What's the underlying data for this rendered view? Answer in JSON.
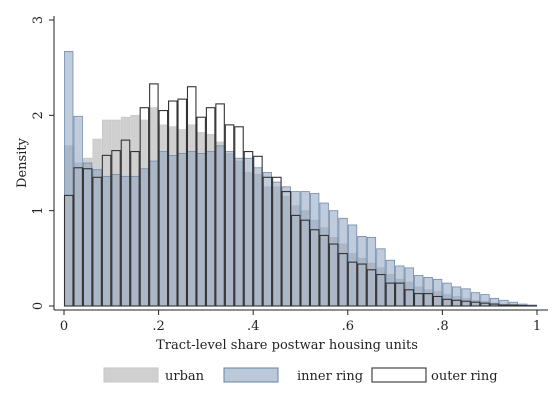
{
  "chart_data": {
    "type": "bar",
    "title": "",
    "xlabel": "Tract-level share postwar housing units",
    "ylabel": "Density",
    "xlim": [
      0,
      1
    ],
    "ylim": [
      0,
      3
    ],
    "x_ticks": [
      0,
      0.2,
      0.4,
      0.6,
      0.8,
      1
    ],
    "x_tick_labels": [
      "0",
      ".2",
      ".4",
      ".6",
      ".8",
      "1"
    ],
    "y_ticks": [
      0,
      1,
      2,
      3
    ],
    "y_tick_labels": [
      "0",
      "1",
      "2",
      "3"
    ],
    "grid": false,
    "legend_position": "bottom",
    "bin_width": 0.02,
    "bin_starts": [
      0,
      0.02,
      0.04,
      0.06,
      0.08,
      0.1,
      0.12,
      0.14,
      0.16,
      0.18,
      0.2,
      0.22,
      0.24,
      0.26,
      0.28,
      0.3,
      0.32,
      0.34,
      0.36,
      0.38,
      0.4,
      0.42,
      0.44,
      0.46,
      0.48,
      0.5,
      0.52,
      0.54,
      0.56,
      0.58,
      0.6,
      0.62,
      0.64,
      0.66,
      0.68,
      0.7,
      0.72,
      0.74,
      0.76,
      0.78,
      0.8,
      0.82,
      0.84,
      0.86,
      0.88,
      0.9,
      0.92,
      0.94,
      0.96,
      0.98
    ],
    "series": [
      {
        "name": "urban",
        "fill": "#c8c8c8",
        "stroke": "#c8c8c8",
        "fill_opacity": 0.85,
        "values": [
          1.68,
          1.5,
          1.55,
          1.75,
          1.95,
          1.95,
          1.98,
          2.0,
          1.95,
          2.08,
          1.9,
          1.88,
          1.85,
          1.9,
          1.82,
          1.8,
          1.72,
          1.6,
          1.52,
          1.4,
          1.38,
          1.25,
          1.25,
          1.15,
          1.05,
          1.0,
          0.9,
          0.82,
          0.72,
          0.65,
          0.55,
          0.5,
          0.45,
          0.4,
          0.33,
          0.28,
          0.25,
          0.2,
          0.17,
          0.15,
          0.12,
          0.1,
          0.08,
          0.06,
          0.05,
          0.03,
          0.02,
          0.01,
          0.01,
          0.005
        ]
      },
      {
        "name": "inner ring",
        "fill": "#8da3bd",
        "stroke": "#6f8bab",
        "fill_opacity": 0.55,
        "values": [
          2.67,
          1.99,
          1.5,
          1.43,
          1.36,
          1.38,
          1.36,
          1.36,
          1.44,
          1.52,
          1.62,
          1.58,
          1.6,
          1.62,
          1.6,
          1.62,
          1.68,
          1.62,
          1.55,
          1.55,
          1.45,
          1.4,
          1.3,
          1.25,
          1.2,
          1.2,
          1.18,
          1.08,
          1.0,
          0.92,
          0.85,
          0.73,
          0.72,
          0.6,
          0.48,
          0.42,
          0.4,
          0.32,
          0.3,
          0.28,
          0.24,
          0.2,
          0.18,
          0.14,
          0.12,
          0.08,
          0.06,
          0.04,
          0.02,
          0.01
        ]
      },
      {
        "name": "outer ring",
        "fill": "none",
        "stroke": "#333333",
        "fill_opacity": 0,
        "values": [
          1.16,
          1.45,
          1.44,
          1.35,
          1.58,
          1.63,
          1.74,
          1.62,
          2.08,
          2.33,
          2.05,
          2.15,
          2.17,
          2.3,
          1.98,
          2.08,
          2.12,
          1.9,
          1.88,
          1.62,
          1.57,
          1.35,
          1.35,
          1.2,
          0.95,
          0.9,
          0.8,
          0.74,
          0.65,
          0.55,
          0.46,
          0.44,
          0.38,
          0.33,
          0.24,
          0.24,
          0.17,
          0.13,
          0.13,
          0.1,
          0.07,
          0.06,
          0.05,
          0.04,
          0.03,
          0.02,
          0.01,
          0.01,
          0.005,
          0.003
        ]
      }
    ]
  }
}
